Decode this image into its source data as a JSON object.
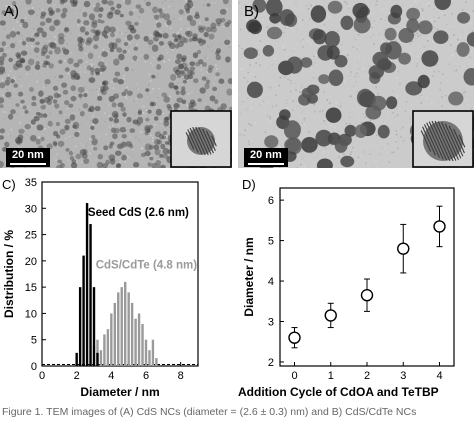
{
  "panels": {
    "a": {
      "label": "A)",
      "scale_bar": "20 nm"
    },
    "b": {
      "label": "B)",
      "scale_bar": "20 nm"
    },
    "c": {
      "label": "C)"
    },
    "d": {
      "label": "D)"
    }
  },
  "caption": "Figure 1. TEM images of (A) CdS NCs (diameter = (2.6 ± 0.3) nm) and B) CdS/CdTe NCs",
  "colors": {
    "seed": "#000000",
    "shell": "#9a9a9a",
    "tem_dark": "#4a4a4a",
    "tem_light": "#d2d2d2"
  },
  "chart_data": [
    {
      "type": "bar",
      "title": "",
      "xlabel": "Diameter / nm",
      "ylabel": "Distribution / %",
      "xlim": [
        0,
        9
      ],
      "ylim": [
        0,
        35
      ],
      "xticks": [
        0,
        2,
        4,
        6,
        8
      ],
      "yticks": [
        0,
        5,
        10,
        15,
        20,
        25,
        30,
        35
      ],
      "series": [
        {
          "name": "Seed CdS (2.6 nm)",
          "x": [
            2.0,
            2.2,
            2.4,
            2.6,
            2.8,
            3.0,
            3.2
          ],
          "values": [
            2.5,
            15,
            21,
            31,
            27,
            15,
            2.5
          ]
        },
        {
          "name": "CdS/CdTe (4.8 nm)",
          "x": [
            3.0,
            3.2,
            3.4,
            3.6,
            3.8,
            4.0,
            4.2,
            4.4,
            4.6,
            4.8,
            5.0,
            5.2,
            5.4,
            5.6,
            5.8,
            6.0,
            6.2,
            6.4,
            6.6
          ],
          "values": [
            4,
            5,
            3,
            6,
            7,
            10,
            12,
            14,
            15,
            16,
            14,
            12,
            9,
            10,
            8,
            5,
            3,
            5,
            1.5
          ]
        }
      ]
    },
    {
      "type": "scatter",
      "title": "",
      "xlabel": "Addition Cycle of CdOA and TeTBP",
      "ylabel": "Diameter / nm",
      "xlim": [
        -0.4,
        4.4
      ],
      "ylim": [
        1.9,
        6.3
      ],
      "xticks": [
        0,
        1,
        2,
        3,
        4
      ],
      "yticks": [
        2,
        3,
        4,
        5,
        6
      ],
      "series": [
        {
          "name": "",
          "x": [
            0,
            1,
            2,
            3,
            4
          ],
          "values": [
            2.6,
            3.15,
            3.65,
            4.8,
            5.35
          ],
          "error": [
            0.25,
            0.3,
            0.4,
            0.6,
            0.5
          ]
        }
      ]
    }
  ]
}
